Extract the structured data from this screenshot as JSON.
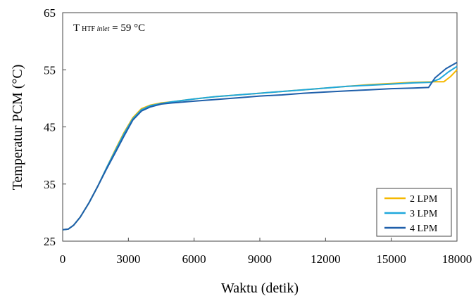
{
  "chart_data": {
    "type": "line",
    "xlabel": "Waktu (detik)",
    "ylabel": "Temperatur PCM (°C)",
    "xlim": [
      0,
      18000
    ],
    "ylim": [
      25,
      65
    ],
    "xticks": [
      "0",
      "3000",
      "6000",
      "9000",
      "12000",
      "15000",
      "18000"
    ],
    "yticks": [
      "25",
      "35",
      "45",
      "55",
      "65"
    ],
    "grid": false,
    "legend_position": "bottom-right",
    "annotation": {
      "main": "T",
      "subscript_upright": "HTF ",
      "subscript_italic": "inlet",
      "rest": " = 59 °C"
    },
    "series": [
      {
        "name": "2 LPM",
        "color": "#F5B800",
        "points": [
          [
            0,
            27
          ],
          [
            250,
            27.1
          ],
          [
            500,
            27.8
          ],
          [
            800,
            29.2
          ],
          [
            1200,
            31.7
          ],
          [
            1600,
            34.6
          ],
          [
            2000,
            37.8
          ],
          [
            2400,
            41
          ],
          [
            2800,
            44
          ],
          [
            3200,
            46.6
          ],
          [
            3600,
            48.2
          ],
          [
            4000,
            48.8
          ],
          [
            4500,
            49.2
          ],
          [
            5000,
            49.4
          ],
          [
            6000,
            49.9
          ],
          [
            7000,
            50.3
          ],
          [
            8000,
            50.6
          ],
          [
            9000,
            50.9
          ],
          [
            10000,
            51.2
          ],
          [
            11000,
            51.5
          ],
          [
            12000,
            51.8
          ],
          [
            13000,
            52.1
          ],
          [
            14000,
            52.4
          ],
          [
            15000,
            52.6
          ],
          [
            16000,
            52.8
          ],
          [
            17000,
            52.9
          ],
          [
            17400,
            52.9
          ],
          [
            17700,
            53.8
          ],
          [
            18000,
            55
          ]
        ]
      },
      {
        "name": "3 LPM",
        "color": "#1FA8DC",
        "points": [
          [
            0,
            27
          ],
          [
            250,
            27.1
          ],
          [
            500,
            27.8
          ],
          [
            800,
            29.2
          ],
          [
            1200,
            31.7
          ],
          [
            1600,
            34.6
          ],
          [
            2000,
            37.8
          ],
          [
            2400,
            40.8
          ],
          [
            2800,
            43.8
          ],
          [
            3200,
            46.4
          ],
          [
            3600,
            48
          ],
          [
            4000,
            48.7
          ],
          [
            4500,
            49.1
          ],
          [
            5000,
            49.4
          ],
          [
            6000,
            49.9
          ],
          [
            7000,
            50.3
          ],
          [
            8000,
            50.6
          ],
          [
            9000,
            50.9
          ],
          [
            10000,
            51.2
          ],
          [
            11000,
            51.5
          ],
          [
            12000,
            51.8
          ],
          [
            13000,
            52.1
          ],
          [
            14000,
            52.3
          ],
          [
            15000,
            52.5
          ],
          [
            16000,
            52.7
          ],
          [
            16800,
            52.8
          ],
          [
            17200,
            53.4
          ],
          [
            17600,
            54.6
          ],
          [
            18000,
            55.6
          ]
        ]
      },
      {
        "name": "4 LPM",
        "color": "#1F5FAA",
        "points": [
          [
            0,
            27
          ],
          [
            250,
            27.1
          ],
          [
            500,
            27.8
          ],
          [
            800,
            29.2
          ],
          [
            1200,
            31.7
          ],
          [
            1600,
            34.6
          ],
          [
            2000,
            37.6
          ],
          [
            2400,
            40.5
          ],
          [
            2800,
            43.4
          ],
          [
            3200,
            46.2
          ],
          [
            3600,
            47.8
          ],
          [
            4000,
            48.5
          ],
          [
            4500,
            49
          ],
          [
            5000,
            49.2
          ],
          [
            6000,
            49.5
          ],
          [
            7000,
            49.8
          ],
          [
            8000,
            50.1
          ],
          [
            9000,
            50.4
          ],
          [
            10000,
            50.6
          ],
          [
            11000,
            50.9
          ],
          [
            12000,
            51.1
          ],
          [
            13000,
            51.3
          ],
          [
            14000,
            51.5
          ],
          [
            15000,
            51.7
          ],
          [
            16000,
            51.8
          ],
          [
            16700,
            51.9
          ],
          [
            17000,
            53.6
          ],
          [
            17500,
            55.2
          ],
          [
            18000,
            56.3
          ]
        ]
      }
    ]
  }
}
